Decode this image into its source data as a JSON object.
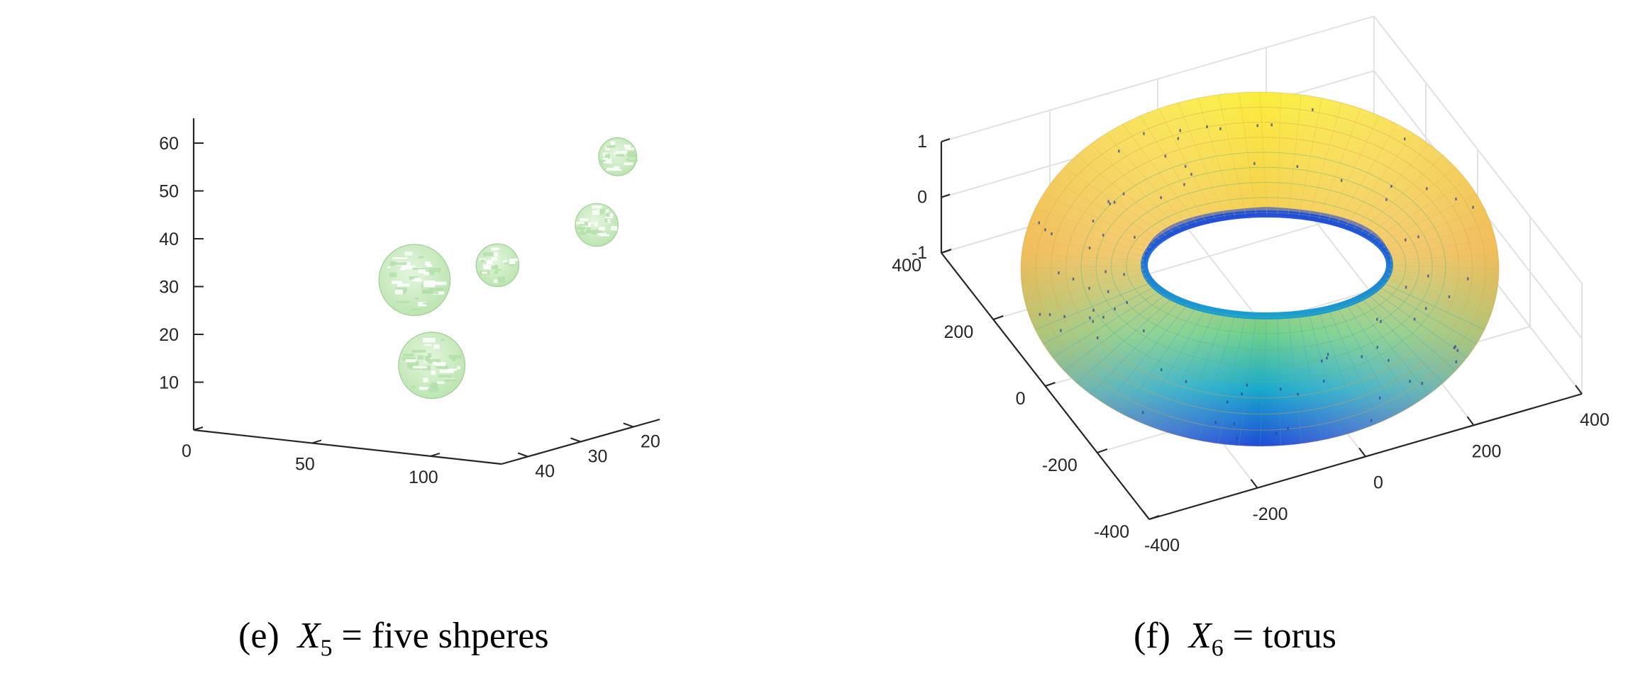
{
  "figure": {
    "panels": [
      {
        "caption": {
          "label": "(e)",
          "symbol": "X",
          "subscript": "5",
          "equals": "=",
          "text": "five shperes"
        },
        "colors": {
          "axis": "#262626",
          "sphere_fill": "#d4f0cc",
          "sphere_shade": "#b4e0aa",
          "sphere_stroke": "#a2cf98"
        }
      },
      {
        "caption": {
          "label": "(f)",
          "symbol": "X",
          "subscript": "6",
          "equals": "=",
          "text": "torus"
        },
        "colors": {
          "axis": "#262626",
          "grid": "#e2e2e2",
          "colormap": [
            "#1f4ad6",
            "#12a8c8",
            "#3fc38a",
            "#e9b84a",
            "#fbee3c"
          ]
        }
      }
    ]
  },
  "chart_data": [
    {
      "type": "scatter",
      "subtype": "3d-spheres",
      "title": "",
      "xlabel": "",
      "ylabel": "",
      "zlabel": "",
      "x_ticks": [
        "0",
        "50",
        "100"
      ],
      "y_ticks": [
        "40",
        "30",
        "20"
      ],
      "z_ticks": [
        "10",
        "20",
        "30",
        "40",
        "50",
        "60"
      ],
      "xlim": [
        0,
        130
      ],
      "ylim": [
        15,
        45
      ],
      "zlim": [
        0,
        65
      ],
      "grid": false,
      "series": [
        {
          "values": [
            {
              "x": 60,
              "y": 30,
              "z": 30,
              "r": 7.5
            },
            {
              "x": 95,
              "y": 30,
              "z": 35,
              "r": 4.5
            },
            {
              "x": 85,
              "y": 38,
              "z": 16,
              "r": 7
            },
            {
              "x": 128,
              "y": 22,
              "z": 57,
              "r": 4
            },
            {
              "x": 128,
              "y": 26,
              "z": 44,
              "r": 4.5
            }
          ]
        }
      ]
    },
    {
      "type": "scatter",
      "subtype": "3d-surface-torus",
      "title": "",
      "xlabel": "",
      "ylabel": "",
      "zlabel": "",
      "x_ticks": [
        "-400",
        "-200",
        "0",
        "200",
        "400"
      ],
      "y_ticks": [
        "400",
        "200",
        "0",
        "-200",
        "-400"
      ],
      "z_ticks": [
        "1",
        "0",
        "-1"
      ],
      "xlim": [
        -400,
        400
      ],
      "ylim": [
        -400,
        400
      ],
      "zlim": [
        -1,
        1
      ],
      "grid": true,
      "colormap": "parula"
    }
  ]
}
